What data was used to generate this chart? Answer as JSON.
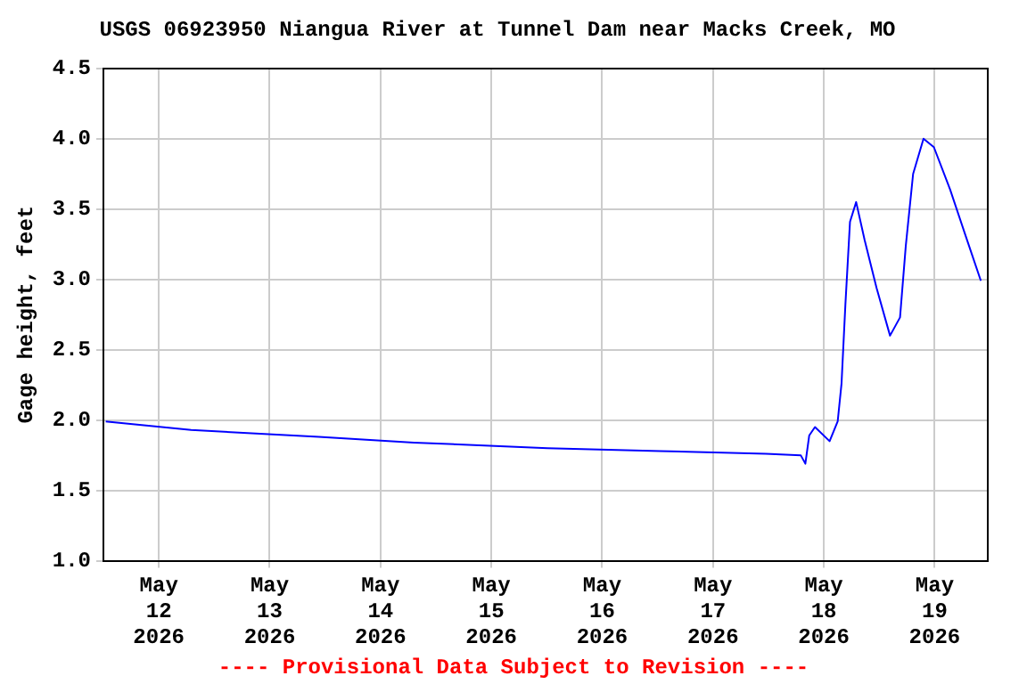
{
  "chart_data": {
    "type": "line",
    "title": "USGS 06923950 Niangua River at Tunnel Dam near Macks Creek, MO",
    "ylabel": "Gage height, feet",
    "annotations": [
      "---- Provisional Data Subject to Revision ----"
    ],
    "x": [
      "2026-05-11T12:30",
      "2026-05-12T07:00",
      "2026-05-13T10:40",
      "2026-05-14T07:15",
      "2026-05-15T12:10",
      "2026-05-16T12:35",
      "2026-05-17T11:25",
      "2026-05-17T19:00",
      "2026-05-17T20:00",
      "2026-05-17T20:50",
      "2026-05-17T22:05",
      "2026-05-18T01:15",
      "2026-05-18T03:00",
      "2026-05-18T03:50",
      "2026-05-18T04:40",
      "2026-05-18T05:40",
      "2026-05-18T07:00",
      "2026-05-18T08:50",
      "2026-05-18T11:25",
      "2026-05-18T14:20",
      "2026-05-18T16:30",
      "2026-05-18T17:45",
      "2026-05-18T19:20",
      "2026-05-18T21:35",
      "2026-05-18T23:50",
      "2026-05-19T03:20",
      "2026-05-19T06:30",
      "2026-05-19T10:00"
    ],
    "series": [
      {
        "color": "#0000ff",
        "values": [
          1.99,
          1.93,
          1.88,
          1.84,
          1.8,
          1.78,
          1.76,
          1.75,
          1.69,
          1.89,
          1.95,
          1.85,
          1.99,
          2.26,
          2.82,
          3.41,
          3.55,
          3.28,
          2.94,
          2.6,
          2.73,
          3.24,
          3.75,
          4.0,
          3.94,
          3.64,
          3.33,
          2.99
        ]
      }
    ],
    "xlim": [
      "2026-05-11T12:00",
      "2026-05-19T11:30"
    ],
    "xticks": [
      {
        "value": "2026-05-12",
        "label": "May 12 2026"
      },
      {
        "value": "2026-05-13",
        "label": "May 13 2026"
      },
      {
        "value": "2026-05-14",
        "label": "May 14 2026"
      },
      {
        "value": "2026-05-15",
        "label": "May 15 2026"
      },
      {
        "value": "2026-05-16",
        "label": "May 16 2026"
      },
      {
        "value": "2026-05-17",
        "label": "May 17 2026"
      },
      {
        "value": "2026-05-18",
        "label": "May 18 2026"
      },
      {
        "value": "2026-05-19",
        "label": "May 19 2026"
      }
    ],
    "ylim": [
      1.0,
      4.5
    ],
    "yticks": [
      {
        "value": 1,
        "label": "1.0"
      },
      1.5,
      {
        "value": 2,
        "label": "2.0"
      },
      2.5,
      {
        "value": 3,
        "label": "3.0"
      },
      3.5,
      {
        "value": 4,
        "label": "4.0"
      },
      4.5
    ],
    "grid": true,
    "legend": false,
    "marker": "none",
    "line_style": "solid"
  }
}
